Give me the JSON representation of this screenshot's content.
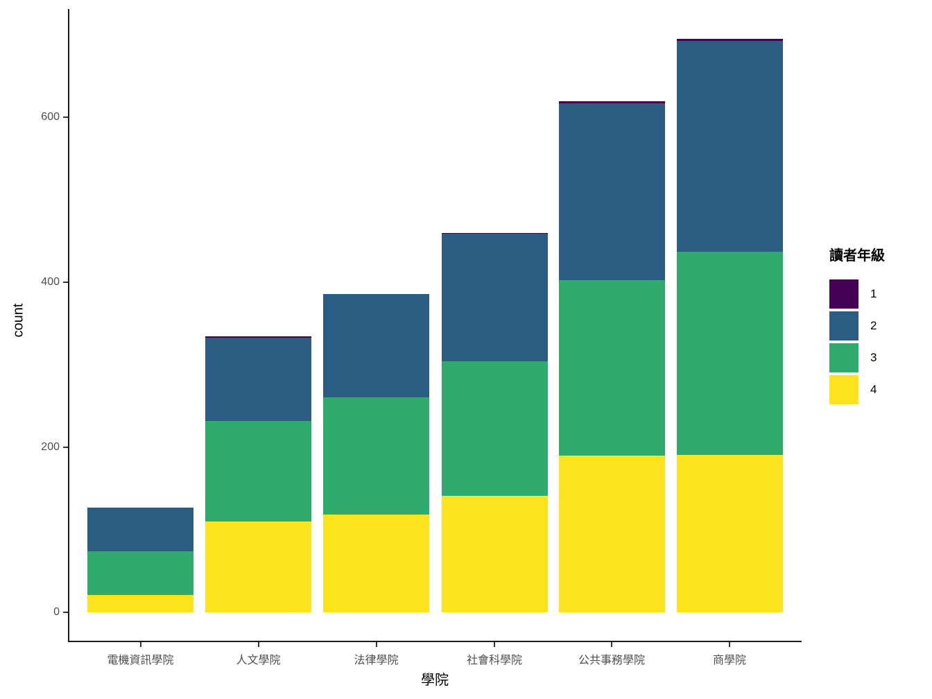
{
  "chart_data": {
    "type": "bar",
    "stacked": true,
    "orientation": "vertical",
    "xlabel": "學院",
    "ylabel": "count",
    "categories": [
      "電機資訊學院",
      "人文學院",
      "法律學院",
      "社會科學院",
      "公共事務學院",
      "商學院"
    ],
    "series": [
      {
        "name": "1",
        "color": "#440154",
        "values": [
          0,
          2,
          0,
          1,
          2,
          3
        ]
      },
      {
        "name": "2",
        "color": "#2b5d82",
        "values": [
          53,
          101,
          125,
          155,
          214,
          255
        ]
      },
      {
        "name": "3",
        "color": "#31ab6b",
        "values": [
          53,
          122,
          142,
          163,
          213,
          246
        ]
      },
      {
        "name": "4",
        "color": "#fbe31e",
        "values": [
          21,
          110,
          119,
          141,
          190,
          191
        ]
      }
    ],
    "stack_order_top_to_bottom": [
      "1",
      "2",
      "3",
      "4"
    ],
    "totals": [
      127,
      335,
      386,
      460,
      619,
      695
    ],
    "y_ticks": [
      0,
      200,
      400,
      600
    ],
    "ylim": [
      0,
      695
    ],
    "grid": false,
    "legend_title": "讀者年級",
    "legend_position": "right",
    "theme": "classic-no-gridlines"
  }
}
